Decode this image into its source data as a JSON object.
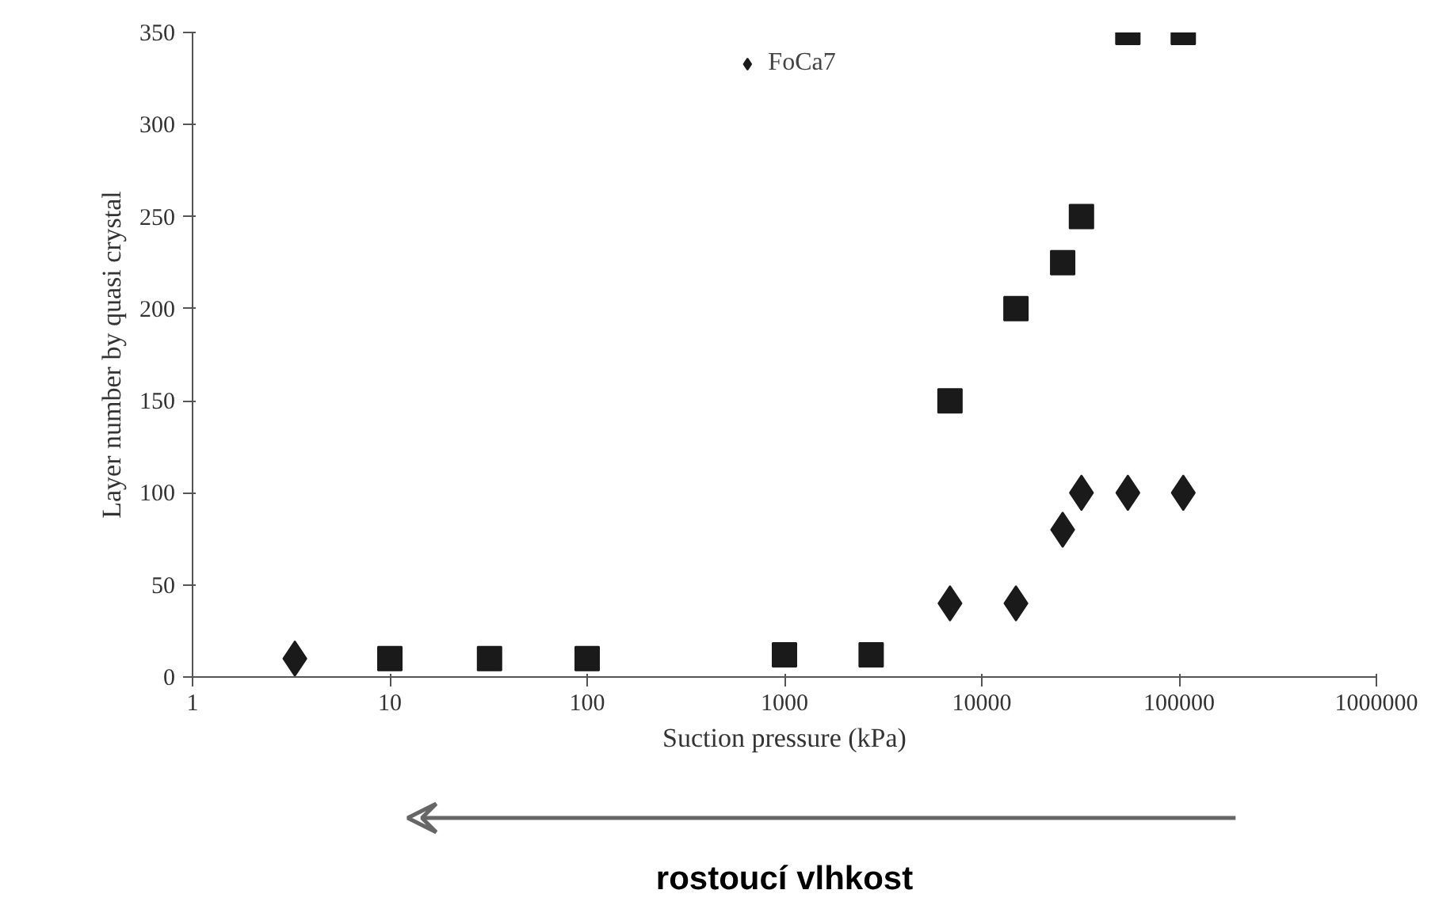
{
  "chart_data": {
    "type": "scatter",
    "xlabel": "Suction pressure (kPa)",
    "ylabel": "Layer number by quasi crystal",
    "log": "x",
    "xlim": [
      1,
      1000000
    ],
    "xticks": [
      1,
      10,
      100,
      1000,
      10000,
      100000,
      1000000
    ],
    "ylim": [
      0,
      350
    ],
    "yticks": [
      0,
      50,
      100,
      150,
      200,
      250,
      300,
      350
    ],
    "grid": false,
    "legend": "top",
    "series": [
      {
        "name": "FoCa7",
        "color": "#1a1a1a",
        "marker": "diamond",
        "x": [
          3.3,
          6900,
          14900,
          25700,
          32000,
          55000,
          105000
        ],
        "values": [
          10,
          40,
          40,
          80,
          100,
          100,
          100
        ]
      },
      {
        "color": "#1a1a1a",
        "marker": "square",
        "x": [
          10,
          32,
          100,
          1000,
          2750,
          6900,
          14900,
          25700,
          32000,
          55000,
          105000
        ],
        "values": [
          10,
          10,
          10,
          12,
          12,
          150,
          200,
          225,
          250,
          350,
          350
        ]
      }
    ],
    "annotations": [
      "rostoucí vlhkost"
    ]
  }
}
